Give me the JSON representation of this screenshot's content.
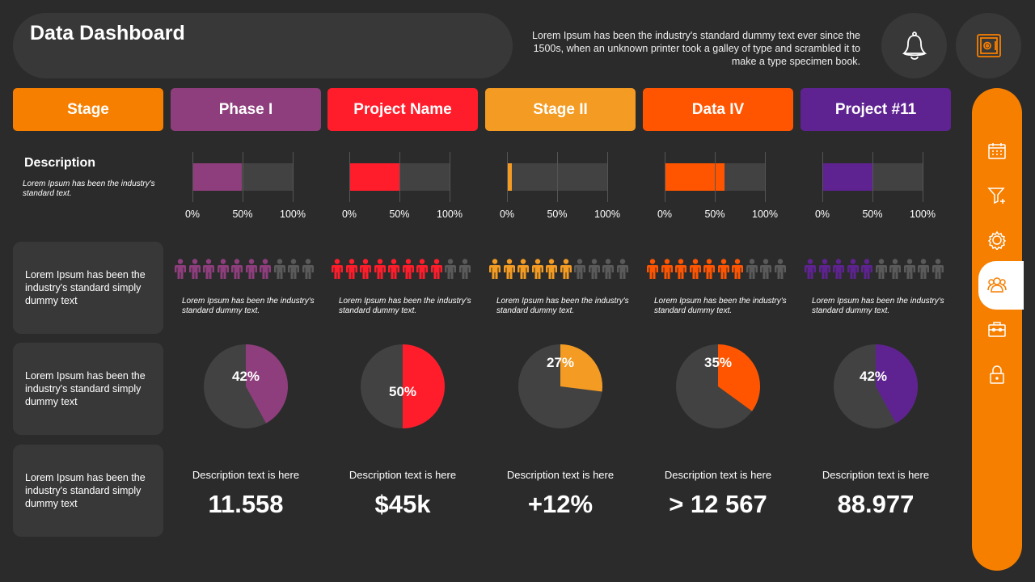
{
  "header": {
    "title": "Data Dashboard",
    "blurb": "Lorem Ipsum has been the industry's standard dummy text ever since the 1500s, when an unknown printer took a galley of type and scrambled it to make a type specimen book.",
    "icons": [
      "bell-icon",
      "safe-icon"
    ]
  },
  "description": {
    "heading": "Description",
    "text": "Lorem Ipsum has been the industry's standard text."
  },
  "row_labels": [
    "Lorem Ipsum has been the industry's standard simply dummy text",
    "Lorem Ipsum has been the industry's standard simply dummy text",
    "Lorem Ipsum has been the industry's standard simply dummy text"
  ],
  "tick_labels": [
    "0%",
    "50%",
    "100%"
  ],
  "inactive_color": "#5a5a5a",
  "pie_bg": "#424242",
  "columns": [
    {
      "label": "Stage",
      "color": "#f77f00"
    },
    {
      "label": "Phase I",
      "color": "#8e3e7c",
      "bar": 49,
      "people": 7,
      "people_text": "Lorem Ipsum has been the industry's standard dummy text.",
      "pie": 42,
      "pie_label": "42%",
      "desc": "Description text is here",
      "value": "11.558"
    },
    {
      "label": "Project Name",
      "color": "#ff1d2b",
      "bar": 50,
      "people": 8,
      "people_text": "Lorem Ipsum has been the industry's standard dummy text.",
      "pie": 50,
      "pie_label": "50%",
      "desc": "Description text is here",
      "value": "$45k"
    },
    {
      "label": "Stage II",
      "color": "#f39b22",
      "bar": 5,
      "people": 6,
      "people_text": "Lorem Ipsum has been the industry's standard dummy text.",
      "pie": 27,
      "pie_label": "27%",
      "desc": "Description text is here",
      "value": "+12%"
    },
    {
      "label": "Data IV",
      "color": "#ff5500",
      "bar": 60,
      "people": 7,
      "people_text": "Lorem Ipsum has been the industry's standard dummy text.",
      "pie": 35,
      "pie_label": "35%",
      "desc": "Description text is here",
      "value": "> 12 567"
    },
    {
      "label": "Project #11",
      "color": "#5e2390",
      "bar": 50,
      "people": 5,
      "people_text": "Lorem Ipsum has been the industry's standard dummy text.",
      "pie": 42,
      "pie_label": "42%",
      "desc": "Description text is here",
      "value": "88.977"
    }
  ],
  "sidebar": {
    "color": "#f77f00",
    "items": [
      "calendar-icon",
      "filter-add-icon",
      "settings-icon",
      "users-icon",
      "toolbox-icon",
      "lock-icon"
    ],
    "active": 3
  }
}
